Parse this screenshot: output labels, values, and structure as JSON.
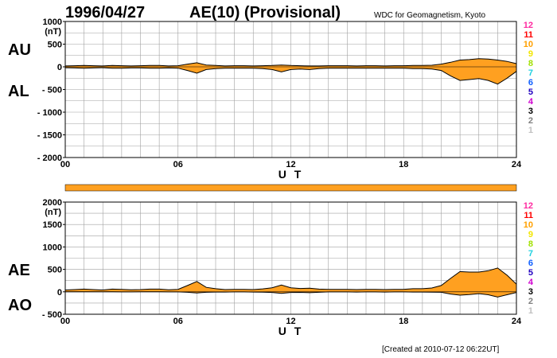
{
  "header": {
    "date": "1996/04/27",
    "title": "AE(10) (Provisional)",
    "source": "WDC for Geomagnetism, Kyoto"
  },
  "footer": {
    "created": "[Created at 2010-07-12 06:22UT]"
  },
  "colors": {
    "fill": "#ffa020",
    "bar": "#ffa020",
    "line": "#000000",
    "grid": "#a0a0a0"
  },
  "legend": [
    {
      "label": "12",
      "color": "#ff2aa0"
    },
    {
      "label": "11",
      "color": "#ff0000"
    },
    {
      "label": "10",
      "color": "#ffa000"
    },
    {
      "label": "9",
      "color": "#f2e600"
    },
    {
      "label": "8",
      "color": "#a0e000"
    },
    {
      "label": "7",
      "color": "#20d0e0"
    },
    {
      "label": "6",
      "color": "#1060ff"
    },
    {
      "label": "5",
      "color": "#2000c0"
    },
    {
      "label": "4",
      "color": "#d000d0"
    },
    {
      "label": "3",
      "color": "#000000"
    },
    {
      "label": "2",
      "color": "#808080"
    },
    {
      "label": "1",
      "color": "#c0c0c0"
    }
  ],
  "chart_data": [
    {
      "type": "area",
      "panel": "AU/AL",
      "upper_label": "AU",
      "lower_label": "AL",
      "unit": "(nT)",
      "xlabel": "U T",
      "xlim": [
        0,
        24
      ],
      "xticks": [
        "00",
        "06",
        "12",
        "18",
        "24"
      ],
      "ylim": [
        -2000,
        1000
      ],
      "yticks": [
        "1000",
        "500",
        "0",
        "- 500",
        "- 1000",
        "- 1500",
        "- 2000"
      ],
      "grid": true,
      "x": [
        0,
        0.5,
        1,
        1.5,
        2,
        2.5,
        3,
        3.5,
        4,
        4.5,
        5,
        5.5,
        6,
        6.5,
        7,
        7.5,
        8,
        8.5,
        9,
        9.5,
        10,
        10.5,
        11,
        11.5,
        12,
        12.5,
        13,
        13.5,
        14,
        14.5,
        15,
        15.5,
        16,
        16.5,
        17,
        17.5,
        18,
        18.5,
        19,
        19.5,
        20,
        20.5,
        21,
        21.5,
        22,
        22.5,
        23,
        23.5,
        24
      ],
      "series": [
        {
          "name": "AU",
          "values": [
            20,
            25,
            30,
            25,
            20,
            30,
            25,
            20,
            25,
            30,
            30,
            20,
            25,
            60,
            90,
            40,
            30,
            20,
            25,
            25,
            20,
            25,
            30,
            40,
            30,
            25,
            20,
            20,
            25,
            25,
            25,
            20,
            25,
            25,
            20,
            25,
            25,
            30,
            30,
            35,
            60,
            100,
            150,
            160,
            180,
            170,
            150,
            120,
            70
          ]
        },
        {
          "name": "AL",
          "values": [
            -20,
            -25,
            -30,
            -25,
            -20,
            -30,
            -30,
            -25,
            -25,
            -30,
            -30,
            -25,
            -30,
            -80,
            -140,
            -60,
            -40,
            -30,
            -30,
            -30,
            -30,
            -40,
            -60,
            -110,
            -60,
            -50,
            -60,
            -40,
            -30,
            -30,
            -30,
            -30,
            -30,
            -30,
            -30,
            -30,
            -30,
            -40,
            -40,
            -50,
            -80,
            -200,
            -300,
            -280,
            -260,
            -300,
            -380,
            -250,
            -100
          ]
        }
      ]
    },
    {
      "type": "area",
      "panel": "AE/AO",
      "upper_label": "AE",
      "lower_label": "AO",
      "unit": "(nT)",
      "xlabel": "U T",
      "xlim": [
        0,
        24
      ],
      "xticks": [
        "00",
        "06",
        "12",
        "18",
        "24"
      ],
      "ylim": [
        -500,
        2000
      ],
      "yticks": [
        "2000",
        "1500",
        "1000",
        "500",
        "0",
        "- 500"
      ],
      "grid": true,
      "x": [
        0,
        0.5,
        1,
        1.5,
        2,
        2.5,
        3,
        3.5,
        4,
        4.5,
        5,
        5.5,
        6,
        6.5,
        7,
        7.5,
        8,
        8.5,
        9,
        9.5,
        10,
        10.5,
        11,
        11.5,
        12,
        12.5,
        13,
        13.5,
        14,
        14.5,
        15,
        15.5,
        16,
        16.5,
        17,
        17.5,
        18,
        18.5,
        19,
        19.5,
        20,
        20.5,
        21,
        21.5,
        22,
        22.5,
        23,
        23.5,
        24
      ],
      "series": [
        {
          "name": "AE",
          "values": [
            40,
            50,
            60,
            50,
            40,
            60,
            55,
            45,
            50,
            60,
            60,
            45,
            55,
            140,
            230,
            100,
            70,
            50,
            55,
            55,
            50,
            65,
            90,
            150,
            90,
            75,
            80,
            60,
            55,
            55,
            55,
            50,
            55,
            55,
            50,
            55,
            55,
            70,
            70,
            85,
            140,
            300,
            450,
            440,
            440,
            470,
            530,
            370,
            170
          ]
        },
        {
          "name": "AO",
          "values": [
            0,
            0,
            0,
            0,
            0,
            0,
            -2,
            -2,
            0,
            0,
            0,
            -2,
            -2,
            -10,
            -25,
            -10,
            -5,
            -5,
            -2,
            -2,
            -5,
            -7,
            -15,
            -35,
            -15,
            -12,
            -20,
            -10,
            -2,
            -2,
            -2,
            -5,
            -2,
            -2,
            -5,
            -2,
            -2,
            -5,
            -5,
            -7,
            -10,
            -50,
            -75,
            -60,
            -40,
            -65,
            -115,
            -65,
            -15
          ]
        }
      ]
    }
  ]
}
